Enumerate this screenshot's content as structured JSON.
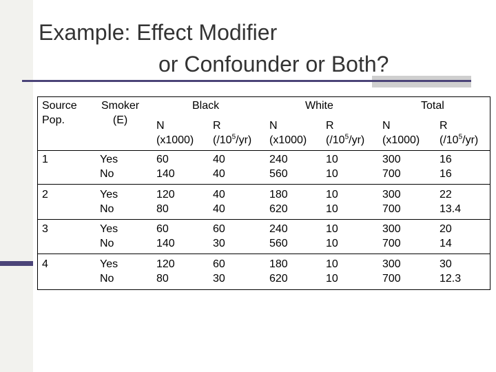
{
  "title": {
    "line1": "Example:  Effect Modifier",
    "line2": "or Confounder or Both?"
  },
  "table": {
    "headers": {
      "source_pop": "Source\nPop.",
      "smoker": "Smoker\n(E)",
      "black": "Black",
      "white": "White",
      "total": "Total"
    },
    "subheaders": {
      "n_line1": "N",
      "n_line2": "(x1000)",
      "r_line1": "R",
      "r_line2_prefix": "(/10",
      "r_line2_sup": "5",
      "r_line2_suffix": "/yr)"
    },
    "rows": [
      {
        "pop": "1",
        "smoker": "Yes\nNo",
        "black_n": "60\n140",
        "black_r": "40\n40",
        "white_n": "240\n560",
        "white_r": "10\n10",
        "total_n": "300\n700",
        "total_r": "16\n16"
      },
      {
        "pop": "2",
        "smoker": "Yes\nNo",
        "black_n": "120\n80",
        "black_r": "40\n40",
        "white_n": "180\n620",
        "white_r": "10\n10",
        "total_n": "300\n700",
        "total_r": "22\n13.4"
      },
      {
        "pop": "3",
        "smoker": "Yes\nNo",
        "black_n": "60\n140",
        "black_r": "60\n30",
        "white_n": "240\n560",
        "white_r": "10\n10",
        "total_n": "300\n700",
        "total_r": "20\n14"
      },
      {
        "pop": "4",
        "smoker": "Yes\nNo",
        "black_n": "120\n80",
        "black_r": "60\n30",
        "white_n": "180\n620",
        "white_r": "10\n10",
        "total_n": "300\n700",
        "total_r": "30\n12.3"
      }
    ]
  },
  "colors": {
    "accent": "#4b4478",
    "title": "#333333"
  }
}
